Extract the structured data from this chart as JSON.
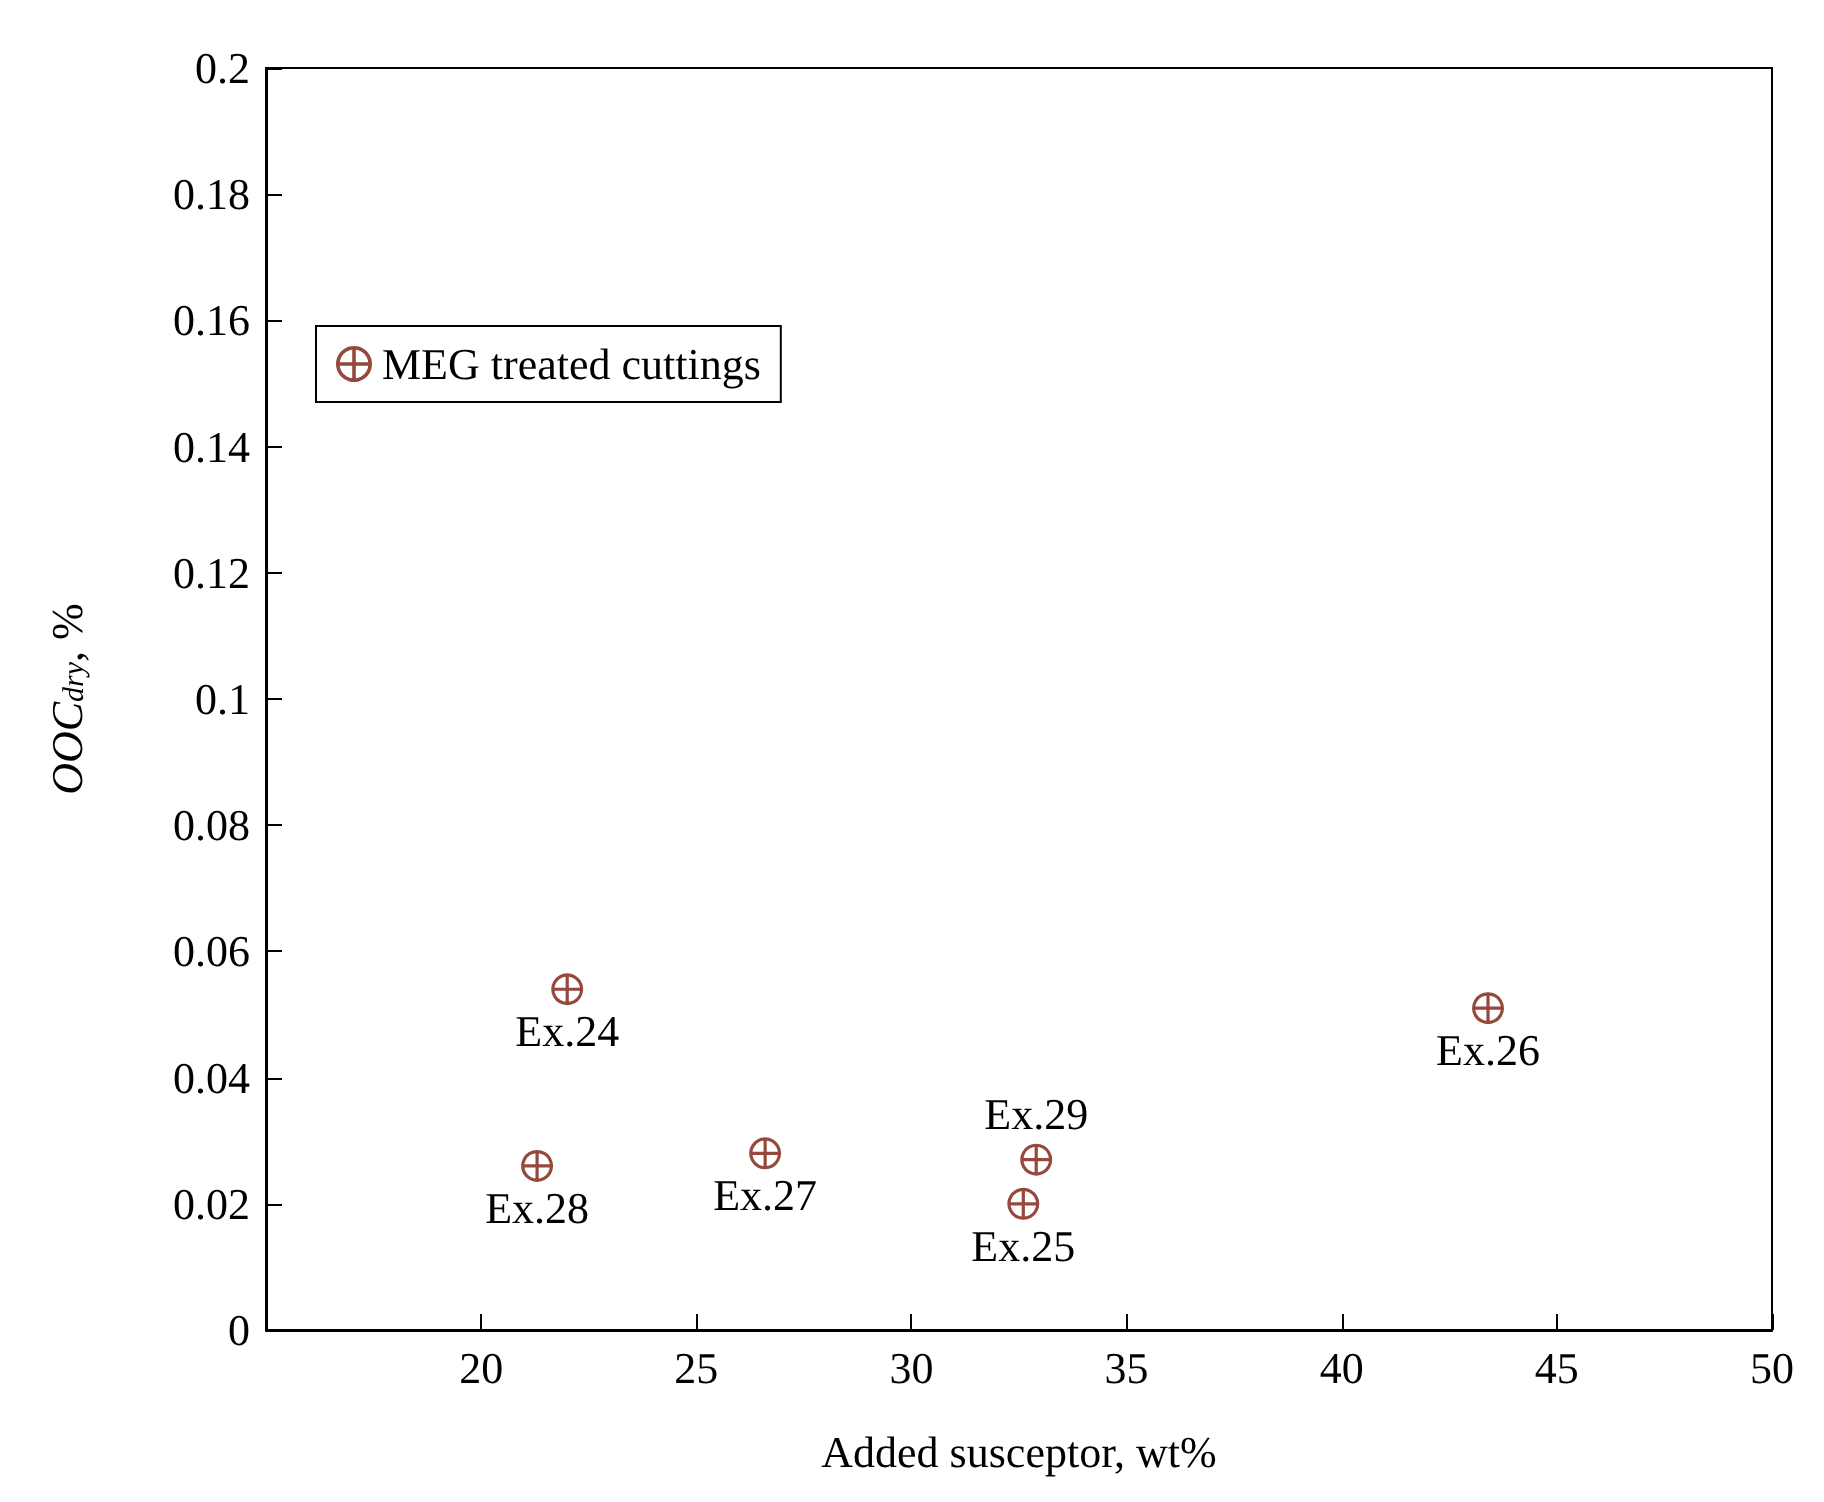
{
  "chart_data": {
    "type": "scatter",
    "xlabel": "Added susceptor, wt%",
    "ylabel": "OOC$_{dry}$, %",
    "x": [
      22.0,
      21.3,
      26.6,
      32.9,
      32.6,
      43.4
    ],
    "series": [
      {
        "name": "MEG treated cuttings",
        "color": "#7a1a0a",
        "values": [
          0.054,
          0.026,
          0.028,
          0.027,
          0.02,
          0.051
        ]
      }
    ],
    "xlim": [
      15,
      50
    ],
    "xticks": [
      20,
      25,
      30,
      35,
      40,
      45,
      50
    ],
    "ylim": [
      0,
      0.2
    ],
    "yticks": [
      0,
      0.02,
      0.04,
      0.06,
      0.08,
      0.1,
      0.12,
      0.14,
      0.16,
      0.18,
      0.2
    ],
    "annotations": [
      {
        "text": "Ex.24",
        "x": 22.0,
        "y": 0.054
      },
      {
        "text": "Ex.28",
        "x": 21.3,
        "y": 0.026
      },
      {
        "text": "Ex.27",
        "x": 26.6,
        "y": 0.028
      },
      {
        "text": "Ex.29",
        "x": 32.9,
        "y": 0.027
      },
      {
        "text": "Ex.25",
        "x": 32.6,
        "y": 0.02
      },
      {
        "text": "Ex.26",
        "x": 43.4,
        "y": 0.051
      }
    ],
    "legend": "top left",
    "marker": "circle",
    "grid": false
  }
}
